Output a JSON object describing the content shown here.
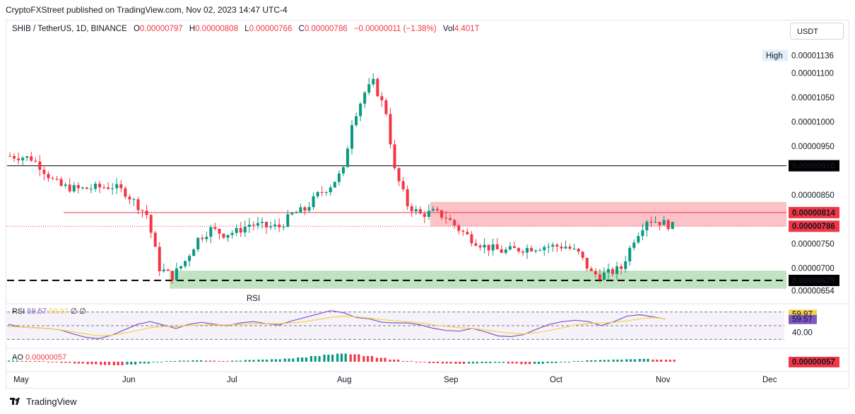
{
  "header": {
    "published": "CryptoFXStreet published on TradingView.com, Nov 02, 2023 14:47 UTC-4",
    "symbol": "SHIB / TetherUS, 1D, BINANCE",
    "o_label": "O",
    "o_value": "0.00000797",
    "h_label": "H",
    "h_value": "0.00000808",
    "l_label": "L",
    "l_value": "0.00000766",
    "c_label": "C",
    "c_value": "0.00000786",
    "change": "−0.00000011 (−1.38%)",
    "vol_label": "Vol",
    "vol_value": "4.401T",
    "currency": "USDT"
  },
  "brand": {
    "name": "TradingView"
  },
  "colors": {
    "up": "#089981",
    "down": "#f23645",
    "resistance": "#f23645",
    "support": "#4caf50",
    "rsi": "#7e57c2",
    "rsi_ma": "#f7d046"
  },
  "chart_data": [
    {
      "type": "candlestick",
      "title": "SHIB / TetherUS, 1D, BINANCE",
      "x_ticks": [
        "May",
        "Jun",
        "Jul",
        "Aug",
        "Sep",
        "Oct",
        "Nov",
        "Dec"
      ],
      "y_ticks": [
        "0.00001100",
        "0.00001050",
        "0.00001000",
        "0.00000950",
        "0.00000850",
        "0.00000750",
        "0.00000700",
        "0.00000654"
      ],
      "ylim": [
        6.3e-06,
        1.17e-05
      ],
      "high_label": "High",
      "high_value": "0.00001136",
      "level_labels": {
        "resistance_line": "0.00000910",
        "zone_top": "0.00000814",
        "last": "0.00000786",
        "support": "0.00000675"
      },
      "annotation": "RSI",
      "resistance_zone": [
        7.86e-06,
        8.36e-06
      ],
      "support_zone": [
        6.58e-06,
        6.95e-06
      ],
      "horizontal_lines": [
        9.1e-06,
        8.14e-06,
        7.86e-06,
        6.75e-06
      ],
      "path_points": [
        [
          0,
          9.3e-06
        ],
        [
          3,
          9.28e-06
        ],
        [
          5,
          9.25e-06
        ],
        [
          7,
          9.1e-06
        ],
        [
          10,
          8.8e-06
        ],
        [
          12,
          8.68e-06
        ],
        [
          16,
          8.62e-06
        ],
        [
          20,
          8.65e-06
        ],
        [
          24,
          8.68e-06
        ],
        [
          27,
          8.55e-06
        ],
        [
          32,
          8.1e-06
        ],
        [
          35,
          7e-06
        ],
        [
          38,
          6.83e-06
        ],
        [
          41,
          7.15e-06
        ],
        [
          44,
          7.6e-06
        ],
        [
          47,
          7.8e-06
        ],
        [
          50,
          7.7e-06
        ],
        [
          53,
          7.75e-06
        ],
        [
          56,
          7.9e-06
        ],
        [
          60,
          7.85e-06
        ],
        [
          63,
          7.85e-06
        ],
        [
          66,
          8.1e-06
        ],
        [
          69,
          8.2e-06
        ],
        [
          72,
          8.5e-06
        ],
        [
          75,
          8.7e-06
        ],
        [
          78,
          9e-06
        ],
        [
          80,
          1e-05
        ],
        [
          83,
          1.06e-05
        ],
        [
          85,
          1.08e-05
        ],
        [
          88,
          1.02e-05
        ],
        [
          90,
          9e-06
        ],
        [
          93,
          8.3e-06
        ],
        [
          96,
          8.1e-06
        ],
        [
          99,
          8.15e-06
        ],
        [
          102,
          8.05e-06
        ],
        [
          105,
          7.8e-06
        ],
        [
          108,
          7.6e-06
        ],
        [
          111,
          7.45e-06
        ],
        [
          115,
          7.35e-06
        ],
        [
          120,
          7.4e-06
        ],
        [
          125,
          7.45e-06
        ],
        [
          130,
          7.45e-06
        ],
        [
          133,
          7.3e-06
        ],
        [
          136,
          6.9e-06
        ],
        [
          138,
          6.85e-06
        ],
        [
          140,
          6.9e-06
        ],
        [
          143,
          7e-06
        ],
        [
          146,
          7.6e-06
        ],
        [
          149,
          8e-06
        ],
        [
          152,
          7.95e-06
        ],
        [
          155,
          7.86e-06
        ]
      ]
    },
    {
      "type": "line",
      "title": "RSI",
      "legend_label": "RSI",
      "value": "59.57",
      "ma_value": "59.97",
      "extra": "∅ ∅",
      "levels": [
        70,
        50,
        30
      ],
      "axis_labels": {
        "ma": "59.97",
        "rsi": "59.57",
        "level": "40.00"
      },
      "ylim": [
        20,
        80
      ],
      "series": [
        {
          "name": "RSI",
          "values": [
            52,
            48,
            47,
            46,
            44,
            38,
            33,
            31,
            36,
            44,
            52,
            56,
            51,
            46,
            52,
            55,
            52,
            50,
            54,
            56,
            53,
            51,
            57,
            62,
            67,
            72,
            69,
            62,
            60,
            55,
            54,
            54,
            51,
            46,
            43,
            42,
            46,
            41,
            35,
            34,
            37,
            45,
            52,
            56,
            58,
            56,
            50,
            56,
            64,
            66,
            63,
            59.57
          ]
        },
        {
          "name": "RSI MA",
          "values": [
            49,
            48,
            47,
            46,
            44,
            41,
            38,
            35,
            36,
            39,
            43,
            47,
            49,
            49,
            50,
            51,
            51,
            51,
            52,
            53,
            53,
            53,
            54,
            56,
            59,
            62,
            64,
            63,
            61,
            59,
            57,
            56,
            54,
            51,
            49,
            47,
            46,
            44,
            41,
            39,
            38,
            40,
            43,
            47,
            51,
            53,
            54,
            55,
            57,
            60,
            62,
            59.97
          ]
        }
      ]
    },
    {
      "type": "bar",
      "title": "AO",
      "legend_label": "AO",
      "value": "0.00000057",
      "axis_label": "0.00000057",
      "values": [
        0.3,
        0.2,
        0.1,
        -0.1,
        -0.3,
        -0.5,
        -0.7,
        -0.9,
        -1.0,
        -0.8,
        -0.5,
        -0.2,
        0.1,
        0.3,
        0.4,
        0.3,
        0.2,
        0.3,
        0.5,
        0.6,
        0.7,
        0.9,
        1.2,
        1.6,
        2.0,
        2.3,
        2.1,
        1.6,
        1.1,
        0.6,
        0.2,
        -0.2,
        -0.4,
        -0.5,
        -0.6,
        -0.5,
        -0.4,
        -0.3,
        -0.5,
        -0.7,
        -0.6,
        -0.4,
        -0.1,
        0.2,
        0.4,
        0.5,
        0.6,
        0.7,
        0.8,
        0.6,
        0.57
      ]
    }
  ]
}
